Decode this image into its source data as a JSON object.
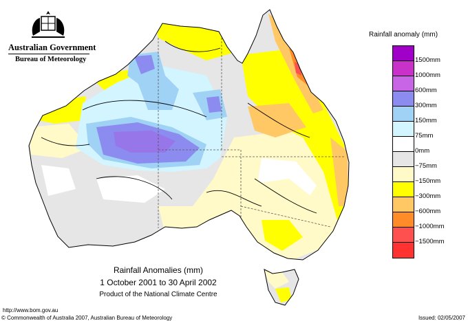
{
  "header": {
    "agency_line1": "Australian Government",
    "agency_line2": "Bureau of Meteorology",
    "crest_icon": "commonwealth-coat-of-arms-icon"
  },
  "legend": {
    "title": "Rainfall anomaly (mm)",
    "items": [
      {
        "label": "1500mm",
        "color": "#a000c8"
      },
      {
        "label": "1000mm",
        "color": "#c832c8"
      },
      {
        "label": "600mm",
        "color": "#c864e6"
      },
      {
        "label": "300mm",
        "color": "#8c8cf0"
      },
      {
        "label": "150mm",
        "color": "#a0d2f5"
      },
      {
        "label": "75mm",
        "color": "#d2f5ff"
      },
      {
        "label": "0mm",
        "color": "#ffffff"
      },
      {
        "label": "−75mm",
        "color": "#e6e6e6"
      },
      {
        "label": "−150mm",
        "color": "#fffac8"
      },
      {
        "label": "−300mm",
        "color": "#ffff00"
      },
      {
        "label": "−600mm",
        "color": "#ffc864"
      },
      {
        "label": "−1000mm",
        "color": "#ff8c28"
      },
      {
        "label": "−1500mm",
        "color": "#ff5050"
      },
      {
        "label": "",
        "color": "#ff3232"
      }
    ]
  },
  "caption": {
    "title": "Rainfall Anomalies (mm)",
    "period": "1 October 2001 to 30 April 2002",
    "credit": "Product of the National Climate Centre"
  },
  "footer": {
    "url": "http://www.bom.gov.au",
    "copyright": "© Commonwealth of Australia 2007, Australian Bureau of Meteorology",
    "issued": "Issued: 02/05/2007"
  }
}
